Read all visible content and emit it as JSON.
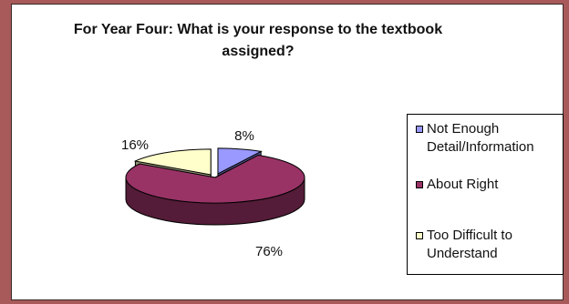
{
  "chart_data": {
    "type": "pie",
    "title": "For Year Four: What is your response to the textbook assigned?",
    "three_d": true,
    "exploded": true,
    "slices": [
      {
        "label": "Not Enough Detail/Information",
        "value": 8,
        "display": "8%",
        "color": "#9999ff"
      },
      {
        "label": "About Right",
        "value": 76,
        "display": "76%",
        "color": "#993366"
      },
      {
        "label": "Too Difficult to Understand",
        "value": 16,
        "display": "16%",
        "color": "#ffffcc"
      }
    ],
    "legend_position": "right"
  }
}
